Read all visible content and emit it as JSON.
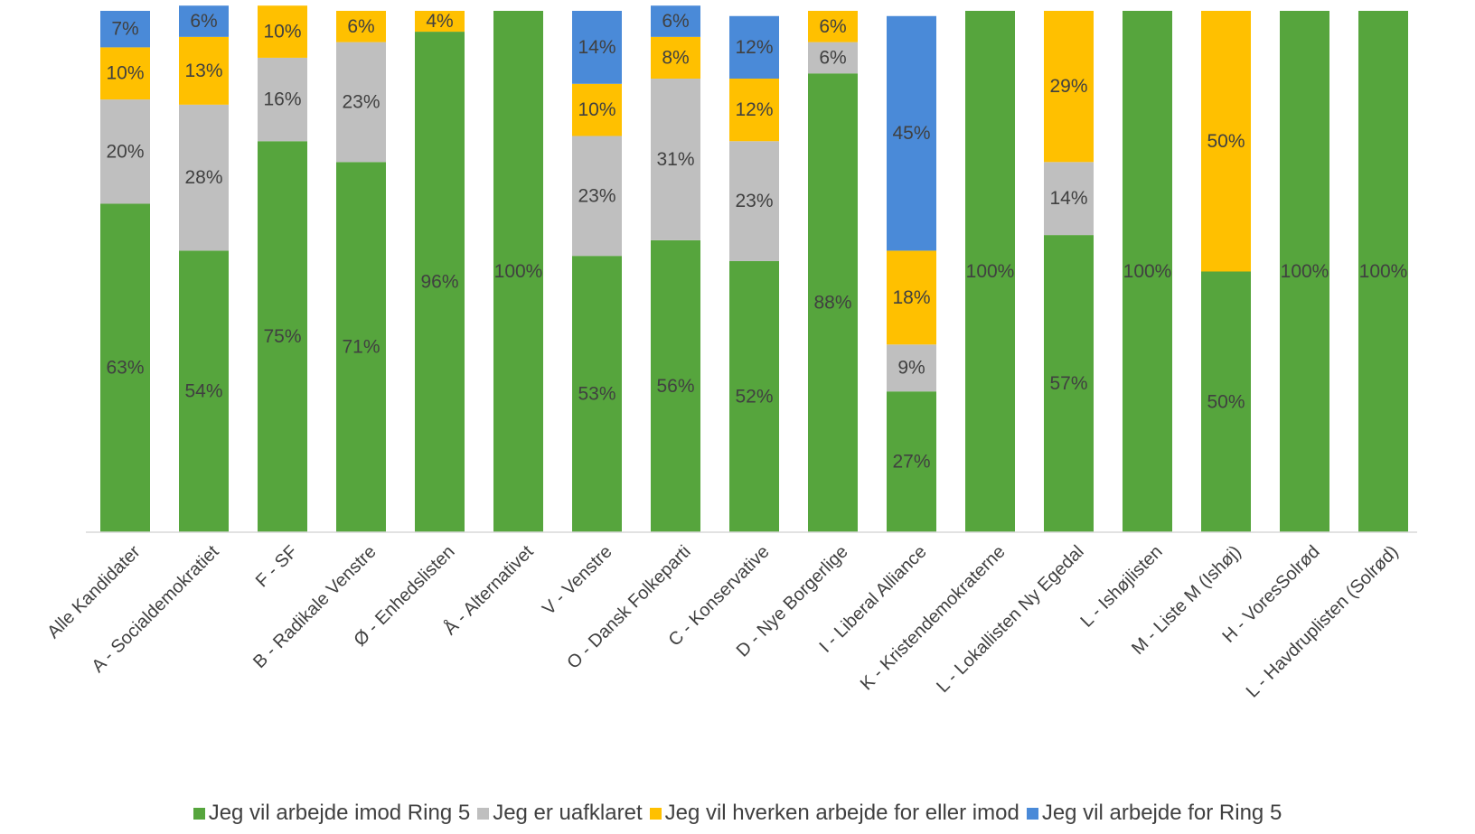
{
  "chart_data": {
    "type": "bar",
    "stacked": true,
    "categories": [
      "Alle Kandidater",
      "A - Socialdemokratiet",
      "F - SF",
      "B - Radikale Venstre",
      "Ø - Enhedslisten",
      "Å - Alternativet",
      "V - Venstre",
      "O - Dansk Folkeparti",
      "C - Konservative",
      "D - Nye Borgerlige",
      "I - Liberal Alliance",
      "K - Kristendemokraterne",
      "L - Lokallisten Ny Egedal",
      "L - Ishøjlisten",
      "M - Liste M (Ishøj)",
      "H - VoresSolrød",
      "L - Havdruplisten (Solrød)"
    ],
    "series": [
      {
        "name": "Jeg vil arbejde imod Ring 5",
        "color": "#56A53D",
        "values": [
          63,
          54,
          75,
          71,
          96,
          100,
          53,
          56,
          52,
          88,
          27,
          100,
          57,
          100,
          50,
          100,
          100
        ],
        "labels": [
          "63%",
          "54%",
          "75%",
          "71%",
          "96%",
          "100%",
          "53%",
          "56%",
          "52%",
          "88%",
          "27%",
          "100%",
          "57%",
          "100%",
          "50%",
          "100%",
          "100%"
        ]
      },
      {
        "name": "Jeg er uafklaret",
        "color": "#BFBFBF",
        "values": [
          20,
          28,
          16,
          23,
          0,
          0,
          23,
          31,
          23,
          6,
          9,
          0,
          14,
          0,
          0,
          0,
          0
        ],
        "labels": [
          "20%",
          "28%",
          "16%",
          "23%",
          "",
          "",
          "23%",
          "31%",
          "23%",
          "6%",
          "9%",
          "",
          "14%",
          "",
          "",
          "",
          ""
        ]
      },
      {
        "name": "Jeg vil hverken arbejde for eller imod",
        "color": "#FFC000",
        "values": [
          10,
          13,
          10,
          6,
          4,
          0,
          10,
          8,
          12,
          6,
          18,
          0,
          29,
          0,
          50,
          0,
          0
        ],
        "labels": [
          "10%",
          "13%",
          "10%",
          "6%",
          "4%",
          "",
          "10%",
          "8%",
          "12%",
          "6%",
          "18%",
          "",
          "29%",
          "",
          "50%",
          "",
          ""
        ]
      },
      {
        "name": "Jeg vil arbejde for Ring 5",
        "color": "#4A8AD8",
        "values": [
          7,
          6,
          0,
          0,
          0,
          0,
          14,
          6,
          12,
          0,
          45,
          0,
          0,
          0,
          0,
          0,
          0
        ],
        "labels": [
          "7%",
          "6%",
          "",
          "",
          "",
          "",
          "14%",
          "6%",
          "12%",
          "",
          "45%",
          "",
          "",
          "",
          "",
          "",
          ""
        ]
      }
    ],
    "ylim": [
      0,
      100
    ],
    "grid": false,
    "legend_position": "bottom"
  }
}
